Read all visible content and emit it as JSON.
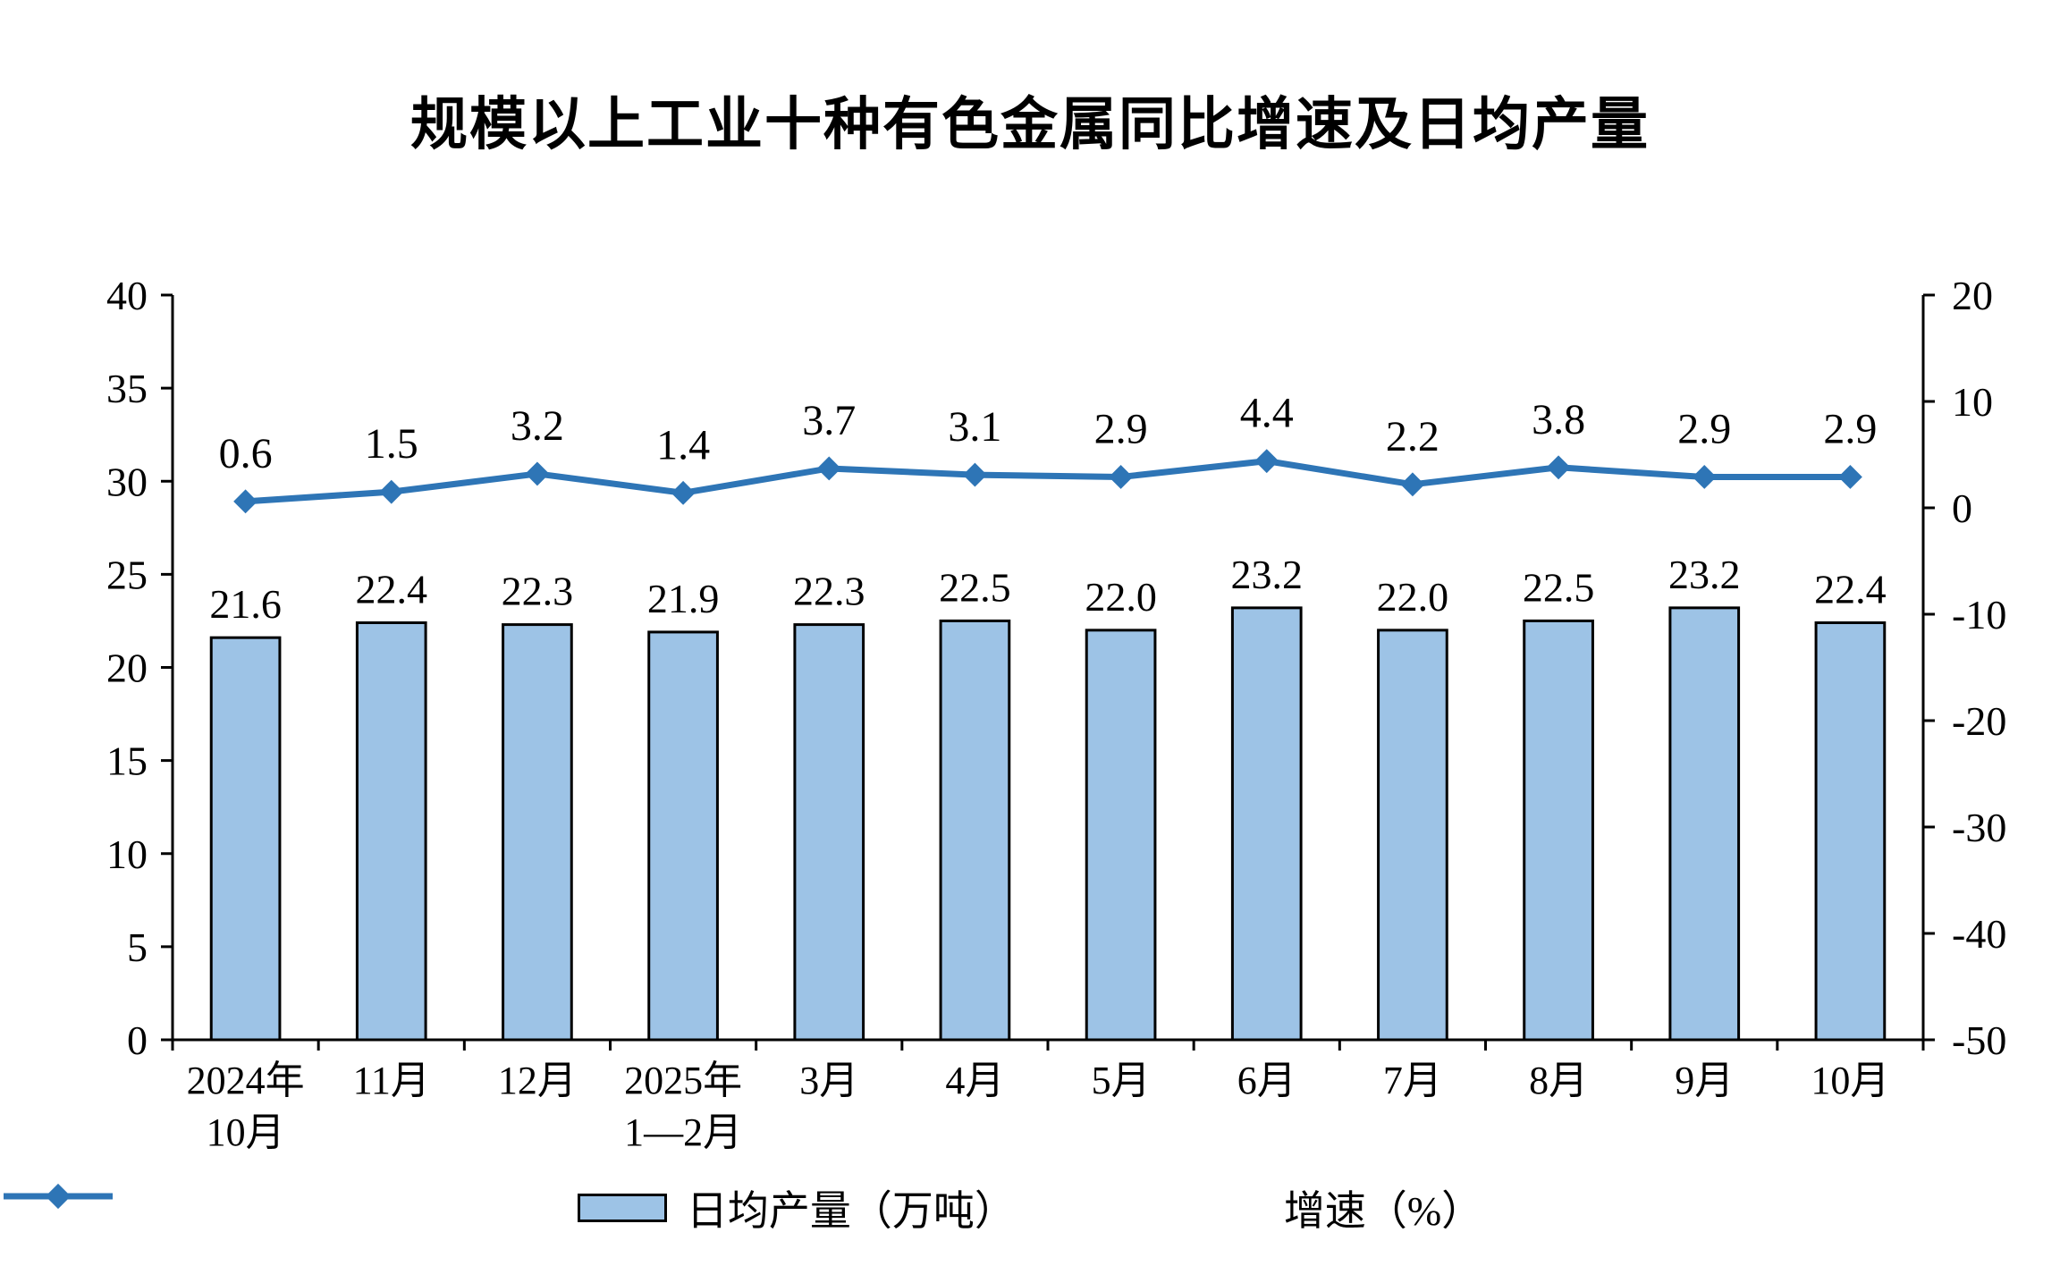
{
  "title": "规模以上工业十种有色金属同比增速及日均产量",
  "chart_data": {
    "type": "bar+line",
    "categories": [
      "2024年\n10月",
      "11月",
      "12月",
      "2025年\n1—2月",
      "3月",
      "4月",
      "5月",
      "6月",
      "7月",
      "8月",
      "9月",
      "10月"
    ],
    "series": [
      {
        "name": "日均产量（万吨）",
        "type": "bar",
        "axis": "left",
        "values": [
          21.6,
          22.4,
          22.3,
          21.9,
          22.3,
          22.5,
          22.0,
          23.2,
          22.0,
          22.5,
          23.2,
          22.4
        ]
      },
      {
        "name": "增速（%）",
        "type": "line",
        "axis": "right",
        "values": [
          0.6,
          1.5,
          3.2,
          1.4,
          3.7,
          3.1,
          2.9,
          4.4,
          2.2,
          3.8,
          2.9,
          2.9
        ]
      }
    ],
    "left_axis": {
      "min": 0,
      "max": 40,
      "step": 5
    },
    "right_axis": {
      "min": -50,
      "max": 20,
      "step": 10
    },
    "grid": false,
    "legend_position": "bottom",
    "colors": {
      "bar_fill": "#9DC3E6",
      "bar_border": "#000000",
      "line": "#2E75B6",
      "text": "#000000"
    },
    "legend": [
      "日均产量（万吨）",
      "增速（%）"
    ]
  }
}
